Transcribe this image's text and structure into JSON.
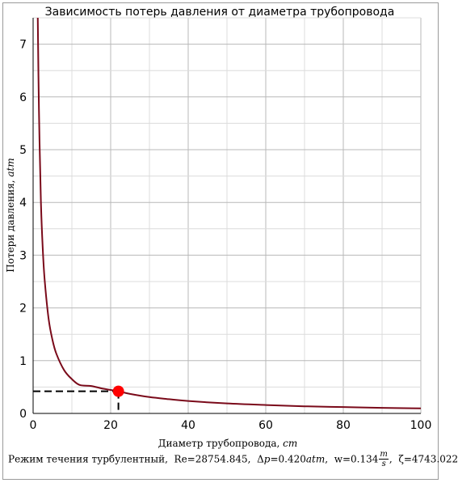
{
  "chart_data": {
    "type": "line",
    "title": "Зависимость потерь давления от диаметра трубопровода",
    "xlabel": "Диаметр трубопровода,",
    "xlabel_unit": "cm",
    "ylabel": "Потери давления,",
    "ylabel_unit": "atm",
    "xlim": [
      0,
      100
    ],
    "ylim": [
      0,
      7.5
    ],
    "x_ticks": [
      0,
      20,
      40,
      60,
      80,
      100
    ],
    "y_ticks": [
      0,
      1,
      2,
      3,
      4,
      5,
      6,
      7
    ],
    "grid": true,
    "series": [
      {
        "color": "#7a0a1a",
        "x": [
          1.2,
          1.5,
          2,
          2.5,
          3,
          4,
          5,
          6,
          8,
          10,
          12,
          15,
          18,
          22,
          25,
          30,
          35,
          40,
          50,
          60,
          70,
          80,
          90,
          100
        ],
        "y": [
          7.5,
          5.77,
          4.04,
          3.1,
          2.51,
          1.79,
          1.39,
          1.13,
          0.82,
          0.65,
          0.54,
          0.52,
          0.47,
          0.42,
          0.37,
          0.31,
          0.27,
          0.235,
          0.19,
          0.16,
          0.135,
          0.12,
          0.105,
          0.095
        ]
      }
    ],
    "marker": {
      "x": 22,
      "y": 0.42,
      "color": "#ff0000"
    },
    "guide_color": "#000000"
  },
  "status": {
    "regime": "Режим течения турбулентный,",
    "re_label": "Re=28754.845,",
    "dp_prefix": "Δ",
    "dp_var": "p",
    "dp_value": "=0.420",
    "dp_unit": "atm",
    "dp_end": ",",
    "w_value": "w=0.134",
    "w_unit_num": "m",
    "w_unit_den": "s",
    "w_end": ",",
    "zeta_label": "ζ=4743.022"
  }
}
